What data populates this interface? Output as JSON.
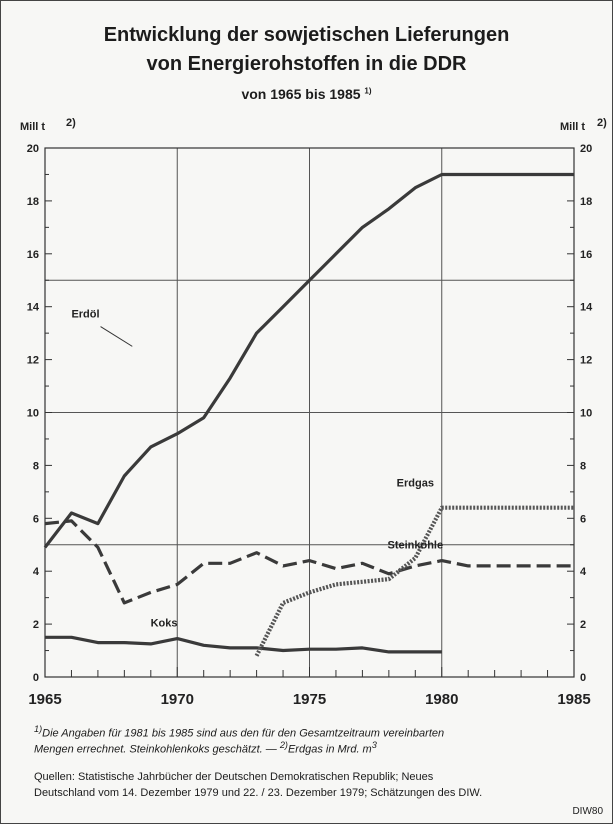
{
  "header": {
    "title_line1": "Entwicklung der sowjetischen Lieferungen",
    "title_line2": "von Energierohstoffen in die DDR",
    "subtitle": "von 1965 bis 1985",
    "subtitle_note": "1)"
  },
  "axes": {
    "left_unit": "Mill t",
    "right_unit": "Mill t",
    "unit_note": "2)"
  },
  "footnotes": {
    "line1_mark": "1)",
    "line1": "Die Angaben für 1981 bis 1985 sind aus den für den Gesamtzeitraum vereinbarten",
    "line2": "Mengen errechnet. Steinkohlenkoks geschätzt. —",
    "line2_mark": "2)",
    "line2_end": "Erdgas in Mrd. m",
    "line2_sup": "3"
  },
  "sources": {
    "line1": "Quellen: Statistische Jahrbücher der Deutschen Demokratischen Republik; Neues",
    "line2": "Deutschland vom 14. Dezember 1979 und 22. / 23. Dezember 1979; Schätzungen des DIW."
  },
  "badge": "DIW80",
  "chart_data": {
    "type": "line",
    "title": "Entwicklung der sowjetischen Lieferungen von Energierohstoffen in die DDR von 1965 bis 1985",
    "xlabel": "",
    "ylabel": "Mill t",
    "xlim": [
      1965,
      1985
    ],
    "ylim": [
      0,
      20
    ],
    "x_ticks": [
      1965,
      1970,
      1975,
      1980,
      1985
    ],
    "y_ticks": [
      0,
      2,
      4,
      6,
      8,
      10,
      12,
      14,
      16,
      18,
      20
    ],
    "grid": "major",
    "legend": "inline labels",
    "series": [
      {
        "name": "Erdöl",
        "style": "solid",
        "color": "#3a3a3a",
        "x": [
          1965,
          1966,
          1967,
          1968,
          1969,
          1970,
          1971,
          1972,
          1973,
          1974,
          1975,
          1976,
          1977,
          1978,
          1979,
          1980,
          1985
        ],
        "values": [
          4.9,
          6.2,
          5.8,
          7.6,
          8.7,
          9.2,
          9.8,
          11.3,
          13.0,
          14.0,
          15.0,
          16.0,
          17.0,
          17.7,
          18.5,
          19.0,
          19.0
        ]
      },
      {
        "name": "Steinkohle",
        "style": "dashed",
        "color": "#3a3a3a",
        "x": [
          1965,
          1966,
          1967,
          1968,
          1969,
          1970,
          1971,
          1972,
          1973,
          1974,
          1975,
          1976,
          1977,
          1978,
          1979,
          1980,
          1981,
          1985
        ],
        "values": [
          5.8,
          5.9,
          4.9,
          2.8,
          3.2,
          3.5,
          4.3,
          4.3,
          4.7,
          4.2,
          4.4,
          4.1,
          4.3,
          3.9,
          4.2,
          4.4,
          4.2,
          4.2
        ]
      },
      {
        "name": "Koks",
        "style": "solid",
        "color": "#3a3a3a",
        "x": [
          1965,
          1966,
          1967,
          1968,
          1969,
          1970,
          1971,
          1972,
          1973,
          1974,
          1975,
          1976,
          1977,
          1978,
          1979,
          1980
        ],
        "values": [
          1.5,
          1.5,
          1.3,
          1.3,
          1.25,
          1.45,
          1.2,
          1.1,
          1.1,
          1.0,
          1.05,
          1.05,
          1.1,
          0.95,
          0.95,
          0.95
        ]
      },
      {
        "name": "Erdgas",
        "style": "dotted",
        "color": "#555555",
        "x": [
          1973,
          1974,
          1975,
          1976,
          1977,
          1978,
          1979,
          1980,
          1985
        ],
        "values": [
          0.8,
          2.8,
          3.2,
          3.5,
          3.6,
          3.7,
          4.5,
          6.4,
          6.4
        ]
      }
    ]
  }
}
